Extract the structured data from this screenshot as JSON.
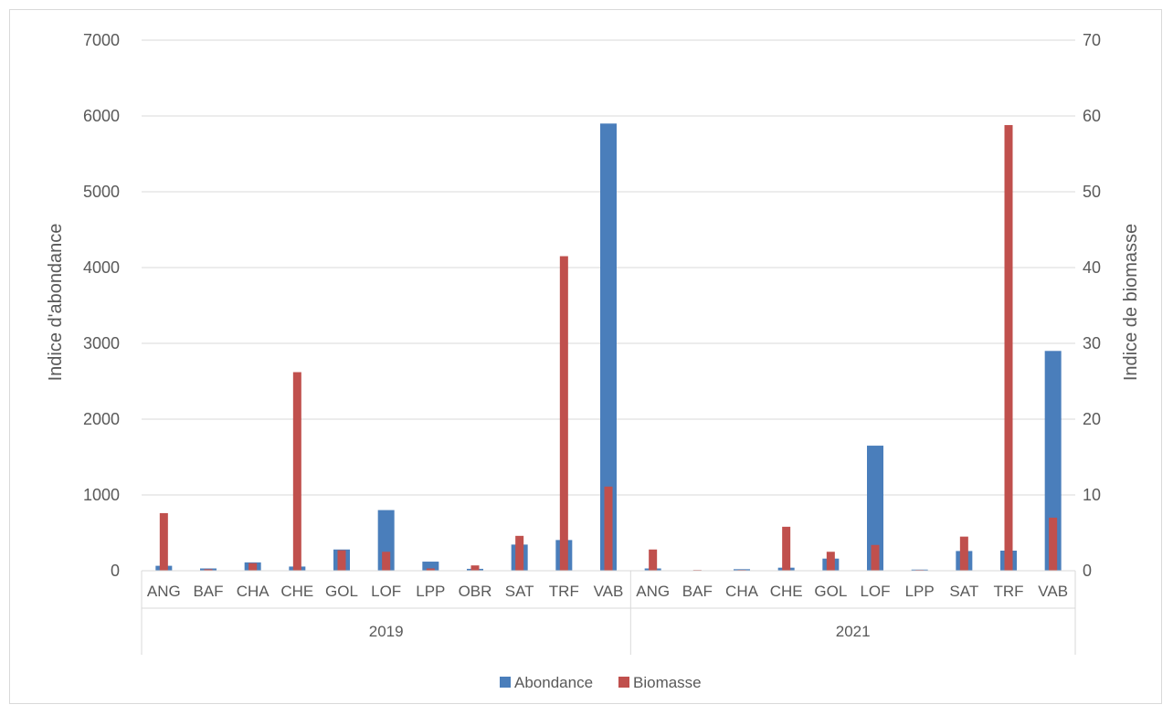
{
  "chart_data": {
    "type": "bar",
    "title": "",
    "groups": [
      {
        "label": "2019",
        "categories": [
          "ANG",
          "BAF",
          "CHA",
          "CHE",
          "GOL",
          "LOF",
          "LPP",
          "OBR",
          "SAT",
          "TRF",
          "VAB"
        ]
      },
      {
        "label": "2021",
        "categories": [
          "ANG",
          "BAF",
          "CHA",
          "CHE",
          "GOL",
          "LOF",
          "LPP",
          "SAT",
          "TRF",
          "VAB"
        ]
      }
    ],
    "series": [
      {
        "name": "Abondance",
        "axis": "left",
        "color": "#4a7ebb",
        "values": [
          65,
          30,
          110,
          55,
          280,
          800,
          120,
          25,
          345,
          405,
          5900,
          30,
          5,
          20,
          40,
          160,
          1650,
          15,
          260,
          265,
          2900
        ]
      },
      {
        "name": "Biomasse",
        "axis": "right",
        "color": "#c0504d",
        "values": [
          7.6,
          0.2,
          1.0,
          26.2,
          2.7,
          2.5,
          0.3,
          0.7,
          4.6,
          41.5,
          11.1,
          2.8,
          0.1,
          0.1,
          5.8,
          2.5,
          3.4,
          0.1,
          4.5,
          58.8,
          7.0
        ]
      }
    ],
    "y_left": {
      "label": "Indice d'abondance",
      "min": 0,
      "max": 7000,
      "ticks": [
        "0",
        "1000",
        "2000",
        "3000",
        "4000",
        "5000",
        "6000",
        "7000"
      ]
    },
    "y_right": {
      "label": "Indice de biomasse",
      "min": 0,
      "max": 70,
      "ticks": [
        "0",
        "10",
        "20",
        "30",
        "40",
        "50",
        "60",
        "70"
      ]
    },
    "grid": true,
    "legend": "bottom"
  }
}
